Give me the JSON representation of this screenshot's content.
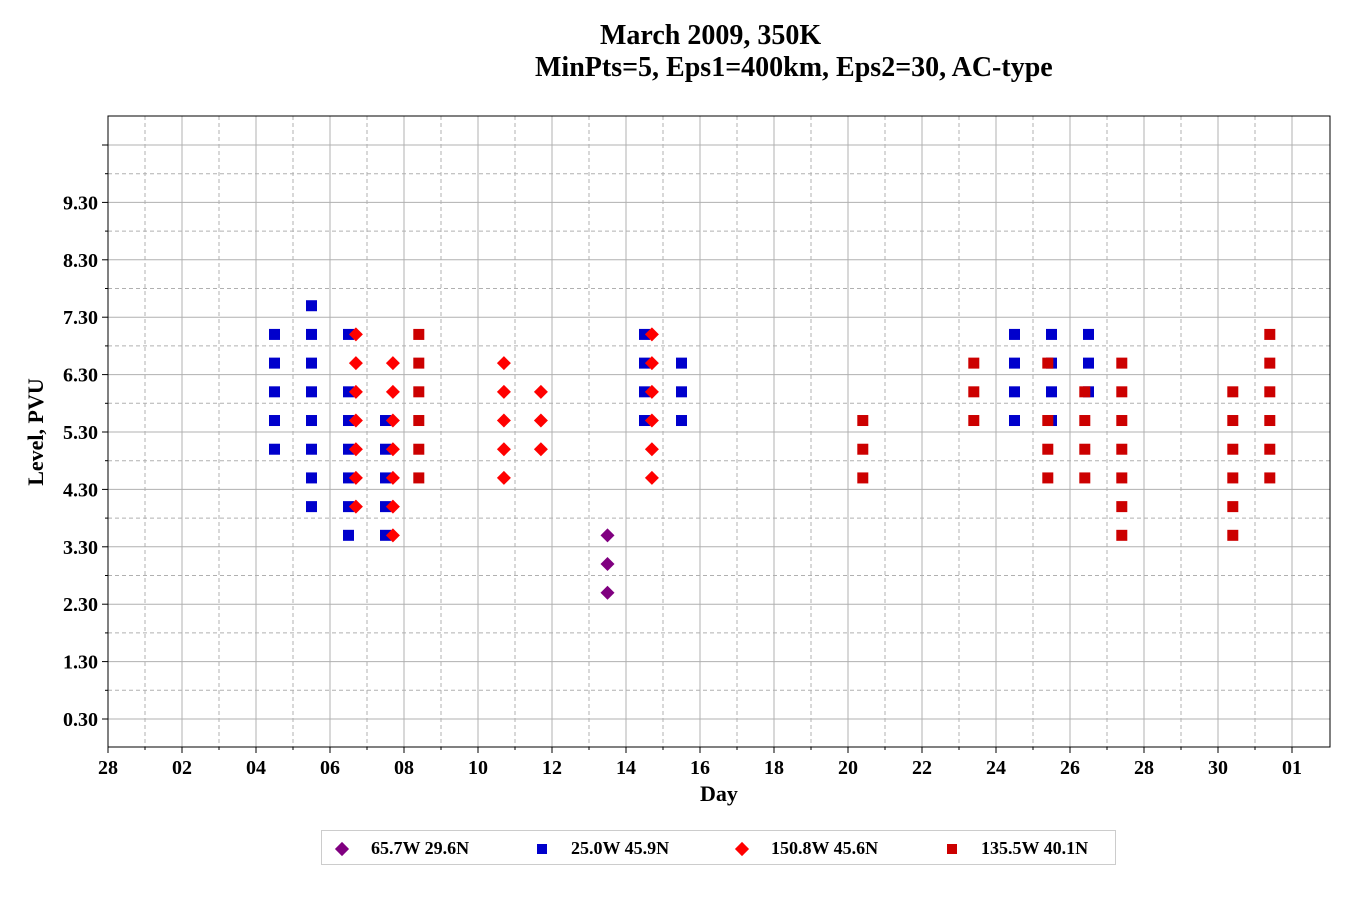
{
  "chart_data": {
    "type": "scatter",
    "title": "March 2009, 350K",
    "subtitle": "MinPts=5, Eps1=400km, Eps2=30, AC-type",
    "xlabel": "Day",
    "ylabel": "Level, PVU",
    "x_tick_labels": [
      "28",
      "02",
      "04",
      "06",
      "08",
      "10",
      "12",
      "14",
      "16",
      "18",
      "20",
      "22",
      "24",
      "26",
      "28",
      "30",
      "01"
    ],
    "y_tick_labels": [
      "0.30",
      "1.30",
      "2.30",
      "3.30",
      "4.30",
      "5.30",
      "6.30",
      "7.30",
      "8.30",
      "9.30"
    ],
    "grid": true,
    "legend_position": "bottom",
    "series": [
      {
        "name": "65.7W 29.6N",
        "marker": "diamond",
        "color": "#800080",
        "points": [
          {
            "day": 12.5,
            "level": 3.5
          },
          {
            "day": 12.5,
            "level": 3.0
          },
          {
            "day": 12.5,
            "level": 2.5
          }
        ]
      },
      {
        "name": "25.0W 45.9N",
        "marker": "square",
        "color": "#0000cc",
        "points": [
          {
            "day": 3.5,
            "level": 7.0
          },
          {
            "day": 3.5,
            "level": 6.5
          },
          {
            "day": 3.5,
            "level": 6.0
          },
          {
            "day": 3.5,
            "level": 5.5
          },
          {
            "day": 3.5,
            "level": 5.0
          },
          {
            "day": 4.5,
            "level": 7.5
          },
          {
            "day": 4.5,
            "level": 7.0
          },
          {
            "day": 4.5,
            "level": 6.5
          },
          {
            "day": 4.5,
            "level": 6.0
          },
          {
            "day": 4.5,
            "level": 5.5
          },
          {
            "day": 4.5,
            "level": 5.0
          },
          {
            "day": 4.5,
            "level": 4.5
          },
          {
            "day": 4.5,
            "level": 4.0
          },
          {
            "day": 5.5,
            "level": 7.0
          },
          {
            "day": 5.5,
            "level": 6.0
          },
          {
            "day": 5.5,
            "level": 5.5
          },
          {
            "day": 5.5,
            "level": 5.0
          },
          {
            "day": 5.5,
            "level": 4.5
          },
          {
            "day": 5.5,
            "level": 4.0
          },
          {
            "day": 5.5,
            "level": 3.5
          },
          {
            "day": 6.5,
            "level": 5.5
          },
          {
            "day": 6.5,
            "level": 5.0
          },
          {
            "day": 6.5,
            "level": 4.5
          },
          {
            "day": 6.5,
            "level": 4.0
          },
          {
            "day": 6.5,
            "level": 3.5
          },
          {
            "day": 13.5,
            "level": 7.0
          },
          {
            "day": 13.5,
            "level": 6.5
          },
          {
            "day": 13.5,
            "level": 6.0
          },
          {
            "day": 13.5,
            "level": 5.5
          },
          {
            "day": 14.5,
            "level": 6.5
          },
          {
            "day": 14.5,
            "level": 6.0
          },
          {
            "day": 14.5,
            "level": 5.5
          },
          {
            "day": 23.5,
            "level": 7.0
          },
          {
            "day": 23.5,
            "level": 6.5
          },
          {
            "day": 23.5,
            "level": 6.0
          },
          {
            "day": 23.5,
            "level": 5.5
          },
          {
            "day": 24.5,
            "level": 7.0
          },
          {
            "day": 24.5,
            "level": 6.5
          },
          {
            "day": 24.5,
            "level": 6.0
          },
          {
            "day": 24.5,
            "level": 5.5
          },
          {
            "day": 25.5,
            "level": 7.0
          },
          {
            "day": 25.5,
            "level": 6.5
          },
          {
            "day": 25.5,
            "level": 6.0
          }
        ]
      },
      {
        "name": "150.8W 45.6N",
        "marker": "diamond",
        "color": "#ff0000",
        "points": [
          {
            "day": 5.7,
            "level": 7.0
          },
          {
            "day": 5.7,
            "level": 6.5
          },
          {
            "day": 5.7,
            "level": 6.0
          },
          {
            "day": 5.7,
            "level": 5.5
          },
          {
            "day": 5.7,
            "level": 5.0
          },
          {
            "day": 5.7,
            "level": 4.5
          },
          {
            "day": 5.7,
            "level": 4.0
          },
          {
            "day": 6.7,
            "level": 6.5
          },
          {
            "day": 6.7,
            "level": 6.0
          },
          {
            "day": 6.7,
            "level": 5.5
          },
          {
            "day": 6.7,
            "level": 5.0
          },
          {
            "day": 6.7,
            "level": 4.5
          },
          {
            "day": 6.7,
            "level": 4.0
          },
          {
            "day": 6.7,
            "level": 3.5
          },
          {
            "day": 9.7,
            "level": 6.5
          },
          {
            "day": 9.7,
            "level": 6.0
          },
          {
            "day": 9.7,
            "level": 5.5
          },
          {
            "day": 9.7,
            "level": 5.0
          },
          {
            "day": 9.7,
            "level": 4.5
          },
          {
            "day": 10.7,
            "level": 6.0
          },
          {
            "day": 10.7,
            "level": 5.5
          },
          {
            "day": 10.7,
            "level": 5.0
          },
          {
            "day": 13.7,
            "level": 7.0
          },
          {
            "day": 13.7,
            "level": 6.5
          },
          {
            "day": 13.7,
            "level": 6.0
          },
          {
            "day": 13.7,
            "level": 5.5
          },
          {
            "day": 13.7,
            "level": 5.0
          },
          {
            "day": 13.7,
            "level": 4.5
          }
        ]
      },
      {
        "name": "135.5W 40.1N",
        "marker": "square",
        "color": "#cc0000",
        "points": [
          {
            "day": 7.4,
            "level": 7.0
          },
          {
            "day": 7.4,
            "level": 6.5
          },
          {
            "day": 7.4,
            "level": 6.0
          },
          {
            "day": 7.4,
            "level": 5.5
          },
          {
            "day": 7.4,
            "level": 5.0
          },
          {
            "day": 7.4,
            "level": 4.5
          },
          {
            "day": 19.4,
            "level": 5.5
          },
          {
            "day": 19.4,
            "level": 5.0
          },
          {
            "day": 19.4,
            "level": 4.5
          },
          {
            "day": 22.4,
            "level": 6.5
          },
          {
            "day": 22.4,
            "level": 6.0
          },
          {
            "day": 22.4,
            "level": 5.5
          },
          {
            "day": 24.4,
            "level": 6.5
          },
          {
            "day": 24.4,
            "level": 5.5
          },
          {
            "day": 24.4,
            "level": 5.0
          },
          {
            "day": 24.4,
            "level": 4.5
          },
          {
            "day": 25.4,
            "level": 6.0
          },
          {
            "day": 25.4,
            "level": 5.5
          },
          {
            "day": 25.4,
            "level": 5.0
          },
          {
            "day": 25.4,
            "level": 4.5
          },
          {
            "day": 26.4,
            "level": 6.5
          },
          {
            "day": 26.4,
            "level": 6.0
          },
          {
            "day": 26.4,
            "level": 5.5
          },
          {
            "day": 26.4,
            "level": 5.0
          },
          {
            "day": 26.4,
            "level": 4.5
          },
          {
            "day": 26.4,
            "level": 4.0
          },
          {
            "day": 26.4,
            "level": 3.5
          },
          {
            "day": 29.4,
            "level": 6.0
          },
          {
            "day": 29.4,
            "level": 5.5
          },
          {
            "day": 29.4,
            "level": 5.0
          },
          {
            "day": 29.4,
            "level": 4.5
          },
          {
            "day": 29.4,
            "level": 4.0
          },
          {
            "day": 29.4,
            "level": 3.5
          },
          {
            "day": 30.4,
            "level": 7.0
          },
          {
            "day": 30.4,
            "level": 6.5
          },
          {
            "day": 30.4,
            "level": 6.0
          },
          {
            "day": 30.4,
            "level": 5.5
          },
          {
            "day": 30.4,
            "level": 5.0
          },
          {
            "day": 30.4,
            "level": 4.5
          }
        ]
      }
    ]
  }
}
